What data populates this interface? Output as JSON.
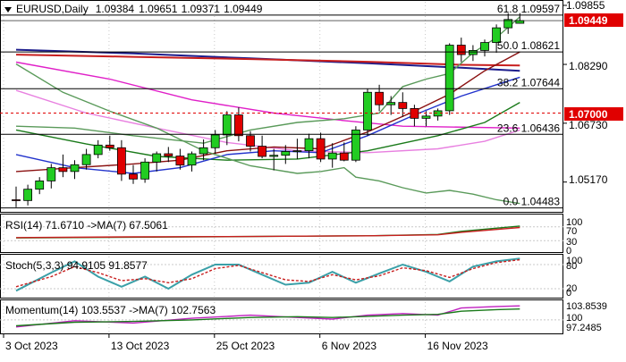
{
  "chart_data": [
    {
      "type": "candlestick",
      "symbol": "EURUSD",
      "timeframe": "Daily",
      "ohlc": [
        "1.09384",
        "1.09651",
        "1.09371",
        "1.09449"
      ],
      "current_price": "1.09449",
      "price_axis_labels": [
        "1.09855",
        "1.08290",
        "1.06730",
        "1.05170"
      ],
      "ylim": [
        1.0438,
        1.0995
      ],
      "x_tick_labels": [
        "3 Oct 2023",
        "13 Oct 2023",
        "25 Oct 2023",
        "6 Nov 2023",
        "16 Nov 2023"
      ],
      "fib_levels": [
        {
          "label": "61.8",
          "value": 1.09597
        },
        {
          "label": "50.0",
          "value": 1.08621
        },
        {
          "label": "38.2",
          "value": 1.07644
        },
        {
          "label": "23.6",
          "value": 1.06436
        },
        {
          "label": "0.0",
          "value": 1.04483
        }
      ],
      "marked_level": {
        "value": 1.07,
        "label": "1.07000",
        "color": "#e00000"
      },
      "candles": [
        [
          1.047,
          1.0505,
          1.045,
          1.0468
        ],
        [
          1.0468,
          1.051,
          1.0455,
          1.0498
        ],
        [
          1.0498,
          1.053,
          1.0485,
          1.052
        ],
        [
          1.052,
          1.0565,
          1.05,
          1.0555
        ],
        [
          1.0555,
          1.059,
          1.053,
          1.0545
        ],
        [
          1.0545,
          1.0575,
          1.0525,
          1.0563
        ],
        [
          1.0563,
          1.0605,
          1.055,
          1.059
        ],
        [
          1.059,
          1.0628,
          1.058,
          1.0615
        ],
        [
          1.0615,
          1.064,
          1.06,
          1.0608
        ],
        [
          1.0608,
          1.0628,
          1.052,
          1.0538
        ],
        [
          1.0538,
          1.0562,
          1.0512,
          1.0525
        ],
        [
          1.0525,
          1.058,
          1.0515,
          1.057
        ],
        [
          1.057,
          1.0598,
          1.0545,
          1.0592
        ],
        [
          1.0592,
          1.061,
          1.057,
          1.0586
        ],
        [
          1.0586,
          1.0605,
          1.055,
          1.0562
        ],
        [
          1.0562,
          1.0598,
          1.0545,
          1.0592
        ],
        [
          1.0592,
          1.063,
          1.0575,
          1.0608
        ],
        [
          1.0608,
          1.0655,
          1.0592,
          1.0642
        ],
        [
          1.0642,
          1.0705,
          1.0615,
          1.0695
        ],
        [
          1.0695,
          1.0715,
          1.0625,
          1.064
        ],
        [
          1.064,
          1.0652,
          1.0598,
          1.0612
        ],
        [
          1.0612,
          1.064,
          1.058,
          1.0585
        ],
        [
          1.0585,
          1.0605,
          1.0548,
          1.0588
        ],
        [
          1.0588,
          1.0615,
          1.0565,
          1.0598
        ],
        [
          1.0598,
          1.0632,
          1.0578,
          1.06
        ],
        [
          1.06,
          1.0645,
          1.058,
          1.0632
        ],
        [
          1.0632,
          1.0648,
          1.057,
          1.0578
        ],
        [
          1.0578,
          1.062,
          1.0555,
          1.0594
        ],
        [
          1.0594,
          1.0622,
          1.0572,
          1.0575
        ],
        [
          1.0575,
          1.0665,
          1.057,
          1.0655
        ],
        [
          1.0655,
          1.0765,
          1.064,
          1.0755
        ],
        [
          1.0755,
          1.0775,
          1.0705,
          1.0722
        ],
        [
          1.0722,
          1.0745,
          1.0695,
          1.0728
        ],
        [
          1.0728,
          1.0755,
          1.069,
          1.0712
        ],
        [
          1.0712,
          1.0722,
          1.0665,
          1.0686
        ],
        [
          1.0686,
          1.0705,
          1.0665,
          1.0692
        ],
        [
          1.0692,
          1.0712,
          1.068,
          1.0706
        ],
        [
          1.0706,
          1.0885,
          1.0695,
          1.088
        ],
        [
          1.088,
          1.09,
          1.0835,
          1.0855
        ],
        [
          1.0855,
          1.088,
          1.0838,
          1.0866
        ],
        [
          1.0866,
          1.0895,
          1.085,
          1.0887
        ],
        [
          1.0887,
          1.0935,
          1.086,
          1.0926
        ],
        [
          1.0926,
          1.0965,
          1.091,
          1.0948
        ],
        [
          1.0938,
          1.0965,
          1.0937,
          1.0945
        ]
      ],
      "overlay_lines": [
        {
          "color": "#1c1c8c",
          "values": [
            [
              0,
              1.0868
            ],
            [
              10,
              1.0858
            ],
            [
              20,
              1.0845
            ],
            [
              30,
              1.0832
            ],
            [
              38,
              1.082
            ],
            [
              43,
              1.0812
            ]
          ]
        },
        {
          "color": "#c81e1e",
          "values": [
            [
              0,
              1.0855
            ],
            [
              10,
              1.0849
            ],
            [
              20,
              1.0843
            ],
            [
              30,
              1.0836
            ],
            [
              38,
              1.0828
            ],
            [
              43,
              1.0826
            ]
          ]
        },
        {
          "color": "#e020c8",
          "values": [
            [
              0,
              1.0835
            ],
            [
              8,
              1.079
            ],
            [
              15,
              1.0735
            ],
            [
              22,
              1.07
            ],
            [
              28,
              1.068
            ],
            [
              33,
              1.0665
            ],
            [
              43,
              1.066
            ]
          ]
        },
        {
          "color": "#e880e0",
          "values": [
            [
              0,
              1.076
            ],
            [
              6,
              1.07
            ],
            [
              12,
              1.066
            ],
            [
              18,
              1.0622
            ],
            [
              24,
              1.06
            ],
            [
              30,
              1.0595
            ],
            [
              36,
              1.0605
            ],
            [
              40,
              1.0625
            ],
            [
              43,
              1.0655
            ]
          ]
        },
        {
          "color": "#1a7a1a",
          "values": [
            [
              0,
              1.0655
            ],
            [
              6,
              1.0618
            ],
            [
              12,
              1.0585
            ],
            [
              18,
              1.0575
            ],
            [
              24,
              1.0578
            ],
            [
              30,
              1.06
            ],
            [
              36,
              1.064
            ],
            [
              40,
              1.0675
            ],
            [
              43,
              1.0728
            ]
          ]
        },
        {
          "color": "#2233cc",
          "values": [
            [
              0,
              1.059
            ],
            [
              5,
              1.0555
            ],
            [
              10,
              1.054
            ],
            [
              14,
              1.0555
            ],
            [
              18,
              1.059
            ],
            [
              22,
              1.06
            ],
            [
              26,
              1.0595
            ],
            [
              30,
              1.064
            ],
            [
              34,
              1.0695
            ],
            [
              38,
              1.0745
            ],
            [
              41,
              1.0775
            ],
            [
              43,
              1.0795
            ]
          ]
        },
        {
          "color": "#8a1010",
          "values": [
            [
              0,
              1.0545
            ],
            [
              5,
              1.0555
            ],
            [
              10,
              1.0565
            ],
            [
              14,
              1.0575
            ],
            [
              18,
              1.06
            ],
            [
              22,
              1.061
            ],
            [
              26,
              1.0605
            ],
            [
              30,
              1.065
            ],
            [
              34,
              1.0705
            ],
            [
              37,
              1.075
            ],
            [
              40,
              1.0812
            ],
            [
              43,
              1.0862
            ]
          ]
        },
        {
          "color": "#5a9a5a",
          "values": [
            [
              0,
              1.083
            ],
            [
              4,
              1.0755
            ],
            [
              8,
              1.0705
            ],
            [
              12,
              1.066
            ],
            [
              16,
              1.06
            ],
            [
              20,
              1.056
            ],
            [
              24,
              1.054
            ],
            [
              26,
              1.0545
            ],
            [
              28,
              1.0555
            ],
            [
              29,
              1.053
            ],
            [
              31,
              1.052
            ],
            [
              33,
              1.0502
            ],
            [
              35,
              1.0488
            ],
            [
              37,
              1.0495
            ],
            [
              39,
              1.0485
            ],
            [
              41,
              1.047
            ],
            [
              43,
              1.046
            ]
          ]
        },
        {
          "color": "#5a9a5a",
          "values": [
            [
              0,
              1.0665
            ],
            [
              5,
              1.066
            ],
            [
              10,
              1.064
            ],
            [
              16,
              1.062
            ],
            [
              20,
              1.0655
            ],
            [
              24,
              1.0675
            ],
            [
              28,
              1.0685
            ],
            [
              31,
              1.07
            ],
            [
              33,
              1.077
            ],
            [
              35,
              1.079
            ],
            [
              37,
              1.0805
            ],
            [
              39,
              1.086
            ],
            [
              41,
              1.09
            ],
            [
              43,
              1.0955
            ]
          ]
        }
      ]
    },
    {
      "type": "line",
      "name": "RSI",
      "label": "RSI(14) 71.6710 ->MA(7) 67.5061",
      "axis_labels": [
        "100",
        "70",
        "30",
        "0"
      ],
      "ylim": [
        0,
        100
      ],
      "series": [
        {
          "color": "#1a7a1a",
          "values": [
            [
              0,
              38
            ],
            [
              10,
              40
            ],
            [
              20,
              42
            ],
            [
              30,
              44
            ],
            [
              36,
              48
            ],
            [
              38,
              57
            ],
            [
              43,
              72
            ]
          ]
        },
        {
          "color": "#c81e1e",
          "values": [
            [
              0,
              39
            ],
            [
              10,
              41
            ],
            [
              20,
              42
            ],
            [
              30,
              44
            ],
            [
              36,
              47
            ],
            [
              38,
              54
            ],
            [
              43,
              68
            ]
          ]
        }
      ]
    },
    {
      "type": "line",
      "name": "Stoch",
      "label": "Stoch(5,3,3) 94.9105 91.8577",
      "axis_labels": [
        "100",
        "80",
        "20",
        "0"
      ],
      "ylim": [
        0,
        100
      ],
      "series": [
        {
          "color": "#3aa0a8",
          "values": [
            [
              0,
              15
            ],
            [
              3,
              60
            ],
            [
              5,
              88
            ],
            [
              7,
              50
            ],
            [
              9,
              25
            ],
            [
              11,
              50
            ],
            [
              13,
              20
            ],
            [
              15,
              55
            ],
            [
              17,
              80
            ],
            [
              19,
              80
            ],
            [
              21,
              55
            ],
            [
              23,
              30
            ],
            [
              25,
              35
            ],
            [
              27,
              62
            ],
            [
              29,
              35
            ],
            [
              31,
              58
            ],
            [
              33,
              80
            ],
            [
              35,
              62
            ],
            [
              37,
              38
            ],
            [
              39,
              75
            ],
            [
              41,
              88
            ],
            [
              43,
              95
            ]
          ]
        },
        {
          "color": "#c81e1e",
          "values": [
            [
              0,
              25
            ],
            [
              3,
              50
            ],
            [
              5,
              75
            ],
            [
              7,
              60
            ],
            [
              9,
              40
            ],
            [
              11,
              45
            ],
            [
              13,
              35
            ],
            [
              15,
              45
            ],
            [
              17,
              70
            ],
            [
              19,
              78
            ],
            [
              21,
              60
            ],
            [
              23,
              42
            ],
            [
              25,
              38
            ],
            [
              27,
              55
            ],
            [
              29,
              42
            ],
            [
              31,
              52
            ],
            [
              33,
              72
            ],
            [
              35,
              65
            ],
            [
              37,
              48
            ],
            [
              39,
              70
            ],
            [
              41,
              85
            ],
            [
              43,
              92
            ]
          ]
        }
      ]
    },
    {
      "type": "line",
      "name": "Momentum",
      "label": "Momentum(14) 103.5537 ->MA(7) 102.7563",
      "axis_labels": [
        "103.8539",
        "100",
        "97.2485"
      ],
      "ylim": [
        96.8,
        104.5
      ],
      "series": [
        {
          "color": "#c020c0",
          "values": [
            [
              0,
              98.2
            ],
            [
              5,
              99.8
            ],
            [
              10,
              99.2
            ],
            [
              15,
              100.4
            ],
            [
              20,
              101.2
            ],
            [
              24,
              100.6
            ],
            [
              27,
              100.2
            ],
            [
              30,
              101.2
            ],
            [
              33,
              101.6
            ],
            [
              36,
              101.2
            ],
            [
              38,
              103.0
            ],
            [
              41,
              103.4
            ],
            [
              43,
              103.55
            ]
          ]
        },
        {
          "color": "#1a7a1a",
          "values": [
            [
              0,
              98.5
            ],
            [
              5,
              99.4
            ],
            [
              10,
              99.6
            ],
            [
              15,
              100.0
            ],
            [
              20,
              100.6
            ],
            [
              24,
              100.8
            ],
            [
              27,
              100.6
            ],
            [
              30,
              100.9
            ],
            [
              33,
              101.2
            ],
            [
              36,
              101.4
            ],
            [
              38,
              102.2
            ],
            [
              41,
              102.6
            ],
            [
              43,
              102.76
            ]
          ]
        }
      ]
    }
  ],
  "colors": {
    "bull_candle": "#22cc22",
    "bear_candle": "#e00000",
    "grid": "#c8c8c8",
    "axis_text": "#000000",
    "current_price_bg": "#e00000",
    "level_bg": "#e00000"
  },
  "icons": {
    "dropdown": "triangle-down-icon"
  }
}
